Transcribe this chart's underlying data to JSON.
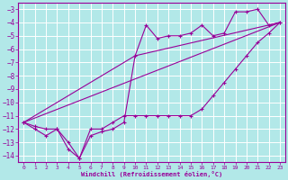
{
  "xlabel": "Windchill (Refroidissement éolien,°C)",
  "background_color": "#b2e8e8",
  "grid_color": "#ffffff",
  "line_color": "#990099",
  "xlim": [
    -0.5,
    23.5
  ],
  "ylim": [
    -14.5,
    -2.5
  ],
  "xticks": [
    0,
    1,
    2,
    3,
    4,
    5,
    6,
    7,
    8,
    9,
    10,
    11,
    12,
    13,
    14,
    15,
    16,
    17,
    18,
    19,
    20,
    21,
    22,
    23
  ],
  "yticks": [
    -3,
    -4,
    -5,
    -6,
    -7,
    -8,
    -9,
    -10,
    -11,
    -12,
    -13,
    -14
  ],
  "series1": {
    "x": [
      0,
      1,
      2,
      3,
      4,
      5,
      6,
      7,
      8,
      9,
      10,
      11,
      12,
      13,
      14,
      15,
      16,
      17,
      18,
      19,
      20,
      21,
      22,
      23
    ],
    "y": [
      -11.5,
      -12,
      -12.5,
      -12,
      -13.5,
      -14.2,
      -12.5,
      -12.2,
      -12,
      -11.5,
      -6.5,
      -4.2,
      -5.2,
      -5.0,
      -5.0,
      -4.8,
      -4.2,
      -5.0,
      -4.8,
      -3.2,
      -3.2,
      -3.0,
      -4.2,
      -4.0
    ]
  },
  "series2": {
    "x": [
      0,
      1,
      2,
      3,
      4,
      5,
      6,
      7,
      8,
      9,
      10,
      11,
      12,
      13,
      14,
      15,
      16,
      17,
      18,
      19,
      20,
      21,
      22,
      23
    ],
    "y": [
      -11.5,
      -11.8,
      -12.0,
      -12.0,
      -13.0,
      -14.2,
      -12.0,
      -12.0,
      -11.5,
      -11.0,
      -11.0,
      -11.0,
      -11.0,
      -11.0,
      -11.0,
      -11.0,
      -10.5,
      -9.5,
      -8.5,
      -7.5,
      -6.5,
      -5.5,
      -4.8,
      -4.0
    ]
  },
  "series3_x": [
    0,
    23
  ],
  "series3_y": [
    -11.5,
    -4.0
  ],
  "series4_x": [
    0,
    10,
    23
  ],
  "series4_y": [
    -11.5,
    -6.5,
    -4.0
  ]
}
